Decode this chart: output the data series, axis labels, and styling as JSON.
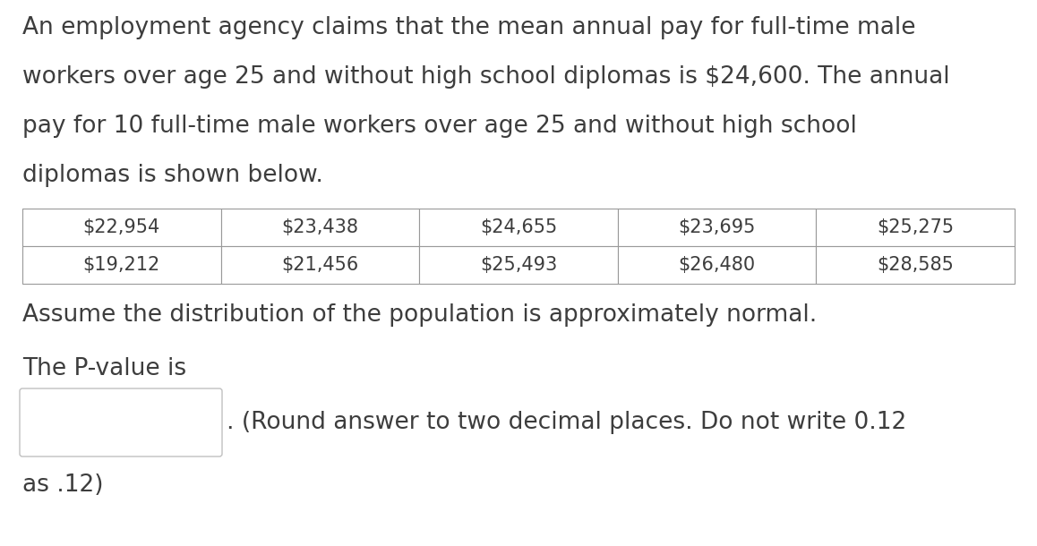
{
  "paragraph_lines": [
    "An employment agency claims that the mean annual pay for full-time male",
    "workers over age 25 and without high school diplomas is $24,600. The annual",
    "pay for 10 full-time male workers over age 25 and without high school",
    "diplomas is shown below."
  ],
  "table_row1": [
    "$22,954",
    "$23,438",
    "$24,655",
    "$23,695",
    "$25,275"
  ],
  "table_row2": [
    "$19,212",
    "$21,456",
    "$25,493",
    "$26,480",
    "$28,585"
  ],
  "assume_text": "Assume the distribution of the population is approximately normal.",
  "pvalue_label": "The P-value is",
  "round_note": ". (Round answer to two decimal places. Do not write 0.12",
  "as_note": "as .12)",
  "bg_color": "#ffffff",
  "text_color": "#3d3d3d",
  "table_border_color": "#999999",
  "font_size_para": 19,
  "font_size_table": 15,
  "font_size_assume": 19,
  "font_size_pvalue": 19,
  "font_size_as": 19
}
